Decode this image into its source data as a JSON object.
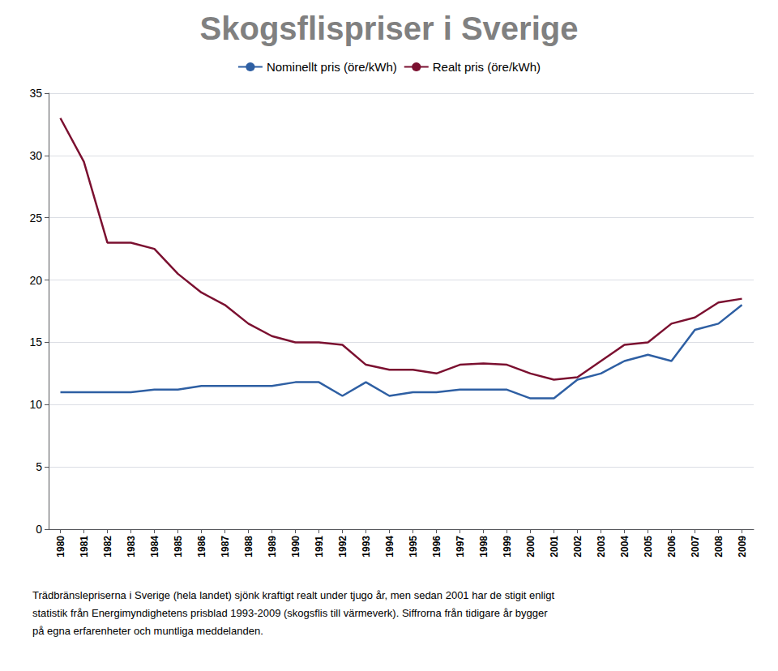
{
  "chart_data": {
    "type": "line",
    "title": "Skogsflispriser i Sverige",
    "x": [
      1980,
      1981,
      1982,
      1983,
      1984,
      1985,
      1986,
      1987,
      1988,
      1989,
      1990,
      1991,
      1992,
      1993,
      1994,
      1995,
      1996,
      1997,
      1998,
      1999,
      2000,
      2001,
      2002,
      2003,
      2004,
      2005,
      2006,
      2007,
      2008,
      2009
    ],
    "series": [
      {
        "name": "Nominellt pris (öre/kWh)",
        "color": "#2E5FA3",
        "values": [
          11.0,
          11.0,
          11.0,
          11.0,
          11.2,
          11.2,
          11.5,
          11.5,
          11.5,
          11.5,
          11.8,
          11.8,
          10.7,
          11.8,
          10.7,
          11.0,
          11.0,
          11.2,
          11.2,
          11.2,
          10.5,
          10.5,
          12.0,
          12.5,
          13.5,
          14.0,
          13.5,
          16.0,
          16.5,
          18.0
        ]
      },
      {
        "name": "Realt pris (öre/kWh)",
        "color": "#7B1030",
        "values": [
          33.0,
          29.5,
          23.0,
          23.0,
          22.5,
          20.5,
          19.0,
          18.0,
          16.5,
          15.5,
          15.0,
          15.0,
          14.8,
          13.2,
          12.8,
          12.8,
          12.5,
          13.2,
          13.3,
          13.2,
          12.5,
          12.0,
          12.2,
          13.5,
          14.8,
          15.0,
          16.5,
          17.0,
          18.2,
          18.5
        ]
      }
    ],
    "xlim": [
      1979.5,
      2009.5
    ],
    "xticks": [
      1980,
      1981,
      1982,
      1983,
      1984,
      1985,
      1986,
      1987,
      1988,
      1989,
      1990,
      1991,
      1992,
      1993,
      1994,
      1995,
      1996,
      1997,
      1998,
      1999,
      2000,
      2001,
      2002,
      2003,
      2004,
      2005,
      2006,
      2007,
      2008,
      2009
    ],
    "ylim": [
      0,
      35
    ],
    "yticks": [
      0,
      5,
      10,
      15,
      20,
      25,
      30,
      35
    ],
    "grid": "y",
    "legend": "upper center",
    "annotations": [
      "Trädbränslepriserna i Sverige (hela landet) sjönk kraftigt realt under tjugo år, men sedan 2001 har de stigit enligt",
      "statistik från Energimyndighetens prisblad 1993-2009 (skogsflis till värmeverk). Siffrorna från tidigare år bygger",
      "på egna erfarenheter och muntliga meddelanden."
    ]
  }
}
